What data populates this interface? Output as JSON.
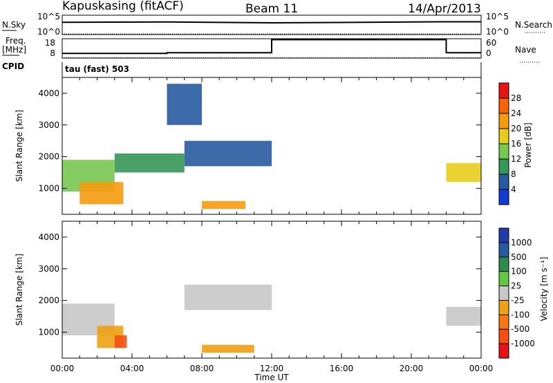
{
  "header": {
    "station": "Kapuskasing (fitACF)",
    "beam": "Beam 11",
    "date": "14/Apr/2013"
  },
  "top_panels": {
    "nsky_label": "N.Sky",
    "nsky_ticks": [
      "10^5",
      "10^0"
    ],
    "nsearch_label": "N.Search",
    "nsearch_ticks": [
      "10^5",
      "10^0"
    ],
    "freq_label": "Freq.",
    "freq_unit": "[MHz]",
    "freq_ticks": [
      "18",
      "8"
    ],
    "nave_label": "Nave",
    "nave_ticks": [
      "60",
      "0"
    ],
    "cpid_label": "CPID",
    "cpid_value": "tau (fast) 503"
  },
  "colorbar_power": {
    "label": "Power [dB]",
    "ticks": [
      "28",
      "24",
      "20",
      "16",
      "12",
      "8",
      "4"
    ],
    "colors": [
      "#e61414",
      "#f5640a",
      "#f59b0f",
      "#e6cd1e",
      "#78c850",
      "#37965a",
      "#285aa0",
      "#143cd2"
    ]
  },
  "colorbar_velocity": {
    "label": "Velocity [m s⁻¹]",
    "ticks": [
      "1000",
      "500",
      "100",
      "25",
      "-25",
      "-100",
      "-500",
      "-1000"
    ],
    "colors": [
      "#233caa",
      "#285aa0",
      "#2d8c4b",
      "#64c841",
      "#c8c8c8",
      "#f0a014",
      "#f57814",
      "#f55014",
      "#e61414"
    ]
  },
  "chart_data": [
    {
      "type": "line",
      "name": "N.Sky / N.Search",
      "x": [
        "00:00",
        "06:00",
        "12:00",
        "14:00",
        "18:00",
        "22:00",
        "24:00"
      ],
      "y": [
        1500,
        1800,
        1100,
        1200,
        1600,
        2000,
        2000
      ],
      "y_scale": "log",
      "ylim": [
        1,
        100000
      ]
    },
    {
      "type": "line",
      "name": "Freq. / Nave",
      "x": [
        "00:00",
        "06:00",
        "06:00",
        "12:00",
        "12:00",
        "22:00",
        "22:00",
        "24:00"
      ],
      "freq_mhz": [
        10.4,
        10.4,
        10.8,
        10.8,
        17.5,
        17.5,
        10.8,
        10.8
      ],
      "nave": [
        1,
        1,
        1,
        1,
        1,
        1,
        1,
        1
      ],
      "ylim_freq": [
        8,
        18
      ],
      "ylim_nave": [
        0,
        60
      ]
    },
    {
      "type": "heatmap",
      "name": "Power",
      "xlabel": "Time UT",
      "ylabel": "Slant Range [km]",
      "x_ticks": [
        "00:00",
        "04:00",
        "08:00",
        "12:00",
        "16:00",
        "20:00",
        "00:00"
      ],
      "y_ticks": [
        "1000",
        "2000",
        "3000",
        "4000"
      ],
      "xlim_hours": [
        0,
        24
      ],
      "ylim_km": [
        180,
        4500
      ],
      "colorbar_label": "Power [dB]",
      "colorbar_range": [
        0,
        30
      ],
      "regions": [
        {
          "t": [
            0.0,
            3.0
          ],
          "r": [
            900,
            1900
          ],
          "value": 12
        },
        {
          "t": [
            1.0,
            3.5
          ],
          "r": [
            500,
            1200
          ],
          "value": 20
        },
        {
          "t": [
            3.0,
            7.0
          ],
          "r": [
            1500,
            2100
          ],
          "value": 8
        },
        {
          "t": [
            7.0,
            12.0
          ],
          "r": [
            1700,
            2500
          ],
          "value": 6
        },
        {
          "t": [
            8.0,
            10.5
          ],
          "r": [
            350,
            600
          ],
          "value": 22
        },
        {
          "t": [
            22.0,
            24.0
          ],
          "r": [
            1200,
            1800
          ],
          "value": 18
        },
        {
          "t": [
            6.0,
            8.0
          ],
          "r": [
            3000,
            4300
          ],
          "value": 6
        }
      ]
    },
    {
      "type": "heatmap",
      "name": "Velocity",
      "xlabel": "Time UT",
      "ylabel": "Slant Range [km]",
      "x_ticks": [
        "00:00",
        "04:00",
        "08:00",
        "12:00",
        "16:00",
        "20:00",
        "00:00"
      ],
      "y_ticks": [
        "1000",
        "2000",
        "3000",
        "4000"
      ],
      "xlim_hours": [
        0,
        24
      ],
      "ylim_km": [
        180,
        4500
      ],
      "colorbar_label": "Velocity [m s⁻¹]",
      "colorbar_range": [
        -1000,
        1000
      ],
      "regions": [
        {
          "t": [
            0.0,
            3.0
          ],
          "r": [
            900,
            1900
          ],
          "value": 0
        },
        {
          "t": [
            2.0,
            3.5
          ],
          "r": [
            500,
            1200
          ],
          "value": -200
        },
        {
          "t": [
            3.0,
            3.7
          ],
          "r": [
            500,
            900
          ],
          "value": -600
        },
        {
          "t": [
            7.0,
            12.0
          ],
          "r": [
            1700,
            2500
          ],
          "value": 0
        },
        {
          "t": [
            8.0,
            11.0
          ],
          "r": [
            350,
            600
          ],
          "value": -120
        },
        {
          "t": [
            22.0,
            24.0
          ],
          "r": [
            1200,
            1800
          ],
          "value": 0
        }
      ]
    }
  ]
}
